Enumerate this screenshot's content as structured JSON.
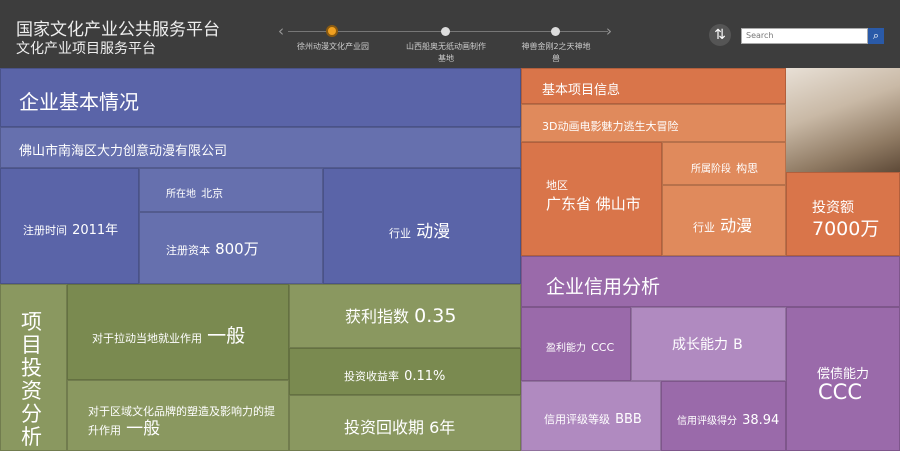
{
  "header": {
    "title": "国家文化产业公共服务平台",
    "subtitle": "文化产业项目服务平台",
    "timeline": [
      {
        "label": "徐州动漫文化产业园"
      },
      {
        "label": "山西船奥无纸动画制作基地"
      },
      {
        "label": "神兽金刚2之天神地兽"
      }
    ],
    "search_placeholder": "Search"
  },
  "enterprise": {
    "heading": "企业基本情况",
    "company": "佛山市南海区大力创意动漫有限公司",
    "reg_time_label": "注册时间",
    "reg_time": "2011年",
    "location_label": "所在地",
    "location": "北京",
    "capital_label": "注册资本",
    "capital": "800万",
    "industry_label": "行业",
    "industry": "动漫"
  },
  "investment": {
    "heading": "项目投资分析",
    "employment_label": "对于拉动当地就业作用",
    "employment": "一般",
    "brand_label": "对于区域文化品牌的塑造及影响力的提升作用",
    "brand": "一般",
    "profit_label": "获利指数",
    "profit": "0.35",
    "return_label": "投资收益率",
    "return": "0.11%",
    "payback_label": "投资回收期",
    "payback": "6年"
  },
  "project": {
    "heading": "基本项目信息",
    "name": "3D动画电影魅力逃生大冒险",
    "region_label": "地区",
    "region": "广东省 佛山市",
    "stage_label": "所属阶段",
    "stage": "构思",
    "industry_label": "行业",
    "industry": "动漫",
    "amount_label": "投资额",
    "amount": "7000万"
  },
  "credit": {
    "heading": "企业信用分析",
    "profitability_label": "盈利能力",
    "profitability": "CCC",
    "growth_label": "成长能力",
    "growth": "B",
    "solvency_label": "偿债能力",
    "solvency": "CCC",
    "rating_label": "信用评级等级",
    "rating": "BBB",
    "score_label": "信用评级得分",
    "score": "38.94"
  }
}
